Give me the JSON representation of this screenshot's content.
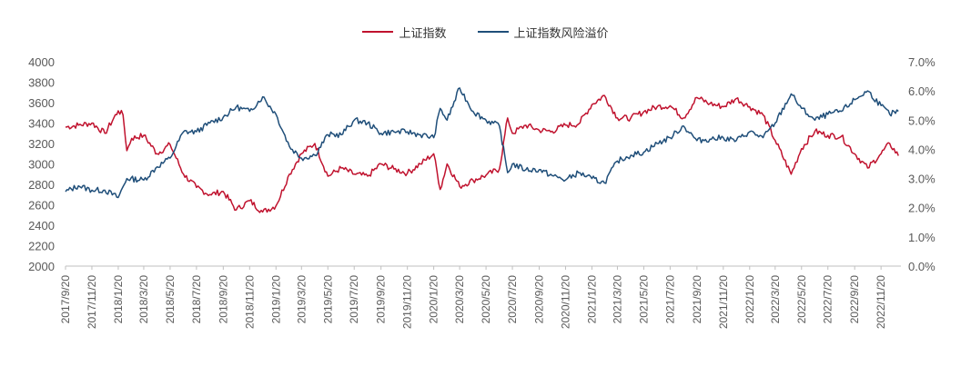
{
  "chart_data": {
    "type": "line",
    "title": "",
    "legend_position": "top-center",
    "grid": false,
    "x_tick_labels": [
      "2017/9/20",
      "2017/11/20",
      "2018/1/20",
      "2018/3/20",
      "2018/5/20",
      "2018/7/20",
      "2018/9/20",
      "2018/11/20",
      "2019/1/20",
      "2019/3/20",
      "2019/5/20",
      "2019/7/20",
      "2019/9/20",
      "2019/11/20",
      "2020/1/20",
      "2020/3/20",
      "2020/5/20",
      "2020/7/20",
      "2020/9/20",
      "2020/11/20",
      "2021/1/20",
      "2021/3/20",
      "2021/5/20",
      "2021/7/20",
      "2021/9/20",
      "2021/11/20",
      "2022/1/20",
      "2022/3/20",
      "2022/5/20",
      "2022/7/20",
      "2022/9/20",
      "2022/11/20"
    ],
    "y_left": {
      "min": 2000,
      "max": 4000,
      "ticks": [
        "2000",
        "2200",
        "2400",
        "2600",
        "2800",
        "3000",
        "3200",
        "3400",
        "3600",
        "3800",
        "4000"
      ]
    },
    "y_right": {
      "min": 0.0,
      "max": 7.0,
      "ticks": [
        "0.0%",
        "1.0%",
        "2.0%",
        "3.0%",
        "4.0%",
        "5.0%",
        "6.0%",
        "7.0%"
      ]
    },
    "series": [
      {
        "name": "上证指数",
        "axis": "left",
        "color": "#C0122E",
        "points": [
          [
            "2017/9/20",
            3360
          ],
          [
            "2017/10/20",
            3380
          ],
          [
            "2017/11/20",
            3400
          ],
          [
            "2017/12/20",
            3300
          ],
          [
            "2018/1/20",
            3520
          ],
          [
            "2018/1/31",
            3480
          ],
          [
            "2018/2/9",
            3130
          ],
          [
            "2018/2/20",
            3250
          ],
          [
            "2018/3/20",
            3280
          ],
          [
            "2018/4/20",
            3100
          ],
          [
            "2018/5/20",
            3190
          ],
          [
            "2018/6/20",
            2900
          ],
          [
            "2018/7/20",
            2770
          ],
          [
            "2018/8/20",
            2700
          ],
          [
            "2018/9/20",
            2730
          ],
          [
            "2018/10/20",
            2550
          ],
          [
            "2018/11/20",
            2640
          ],
          [
            "2018/12/20",
            2530
          ],
          [
            "2019/1/20",
            2590
          ],
          [
            "2019/2/20",
            2900
          ],
          [
            "2019/3/20",
            3100
          ],
          [
            "2019/4/20",
            3200
          ],
          [
            "2019/5/20",
            2880
          ],
          [
            "2019/6/20",
            2960
          ],
          [
            "2019/7/20",
            2900
          ],
          [
            "2019/8/20",
            2880
          ],
          [
            "2019/9/20",
            3000
          ],
          [
            "2019/10/20",
            2950
          ],
          [
            "2019/11/20",
            2910
          ],
          [
            "2019/12/20",
            3000
          ],
          [
            "2020/1/20",
            3100
          ],
          [
            "2020/2/4",
            2750
          ],
          [
            "2020/2/20",
            3000
          ],
          [
            "2020/3/20",
            2780
          ],
          [
            "2020/4/20",
            2840
          ],
          [
            "2020/5/20",
            2890
          ],
          [
            "2020/6/20",
            2950
          ],
          [
            "2020/7/9",
            3450
          ],
          [
            "2020/7/20",
            3300
          ],
          [
            "2020/8/20",
            3380
          ],
          [
            "2020/9/20",
            3330
          ],
          [
            "2020/10/20",
            3320
          ],
          [
            "2020/11/20",
            3380
          ],
          [
            "2020/12/20",
            3390
          ],
          [
            "2021/1/20",
            3580
          ],
          [
            "2021/2/18",
            3670
          ],
          [
            "2021/3/20",
            3450
          ],
          [
            "2021/4/20",
            3450
          ],
          [
            "2021/5/20",
            3510
          ],
          [
            "2021/6/20",
            3560
          ],
          [
            "2021/7/20",
            3570
          ],
          [
            "2021/8/20",
            3450
          ],
          [
            "2021/9/20",
            3650
          ],
          [
            "2021/10/20",
            3590
          ],
          [
            "2021/11/20",
            3560
          ],
          [
            "2021/12/20",
            3640
          ],
          [
            "2022/1/20",
            3560
          ],
          [
            "2022/2/20",
            3480
          ],
          [
            "2022/3/20",
            3230
          ],
          [
            "2022/4/26",
            2900
          ],
          [
            "2022/5/20",
            3150
          ],
          [
            "2022/6/20",
            3320
          ],
          [
            "2022/7/20",
            3280
          ],
          [
            "2022/8/20",
            3270
          ],
          [
            "2022/9/20",
            3100
          ],
          [
            "2022/10/20",
            2960
          ],
          [
            "2022/11/20",
            3100
          ],
          [
            "2022/12/10",
            3200
          ],
          [
            "2022/12/30",
            3080
          ]
        ]
      },
      {
        "name": "上证指数风险溢价",
        "axis": "right",
        "color": "#1F4E79",
        "points": [
          [
            "2017/9/20",
            2.55
          ],
          [
            "2017/10/20",
            2.75
          ],
          [
            "2017/11/20",
            2.6
          ],
          [
            "2017/12/20",
            2.6
          ],
          [
            "2018/1/20",
            2.35
          ],
          [
            "2018/2/9",
            3.0
          ],
          [
            "2018/3/20",
            2.95
          ],
          [
            "2018/4/20",
            3.4
          ],
          [
            "2018/5/20",
            3.7
          ],
          [
            "2018/6/20",
            4.6
          ],
          [
            "2018/7/20",
            4.6
          ],
          [
            "2018/8/20",
            4.9
          ],
          [
            "2018/9/20",
            5.1
          ],
          [
            "2018/10/20",
            5.45
          ],
          [
            "2018/11/20",
            5.3
          ],
          [
            "2018/12/20",
            5.8
          ],
          [
            "2019/1/20",
            5.2
          ],
          [
            "2019/2/20",
            4.1
          ],
          [
            "2019/3/20",
            3.7
          ],
          [
            "2019/4/20",
            3.8
          ],
          [
            "2019/5/20",
            4.5
          ],
          [
            "2019/6/20",
            4.5
          ],
          [
            "2019/7/20",
            5.0
          ],
          [
            "2019/8/20",
            4.9
          ],
          [
            "2019/9/20",
            4.55
          ],
          [
            "2019/10/20",
            4.6
          ],
          [
            "2019/11/20",
            4.6
          ],
          [
            "2019/12/20",
            4.5
          ],
          [
            "2020/1/20",
            4.4
          ],
          [
            "2020/2/4",
            5.4
          ],
          [
            "2020/2/20",
            5.0
          ],
          [
            "2020/3/20",
            6.1
          ],
          [
            "2020/4/20",
            5.3
          ],
          [
            "2020/5/20",
            5.0
          ],
          [
            "2020/6/20",
            4.8
          ],
          [
            "2020/7/9",
            3.2
          ],
          [
            "2020/7/20",
            3.5
          ],
          [
            "2020/8/20",
            3.3
          ],
          [
            "2020/9/20",
            3.3
          ],
          [
            "2020/10/20",
            3.1
          ],
          [
            "2020/11/20",
            2.95
          ],
          [
            "2020/12/20",
            3.2
          ],
          [
            "2021/1/20",
            3.0
          ],
          [
            "2021/2/18",
            2.85
          ],
          [
            "2021/3/20",
            3.6
          ],
          [
            "2021/4/20",
            3.8
          ],
          [
            "2021/5/20",
            3.9
          ],
          [
            "2021/6/20",
            4.2
          ],
          [
            "2021/7/20",
            4.4
          ],
          [
            "2021/8/20",
            4.8
          ],
          [
            "2021/9/20",
            4.3
          ],
          [
            "2021/10/20",
            4.35
          ],
          [
            "2021/11/20",
            4.4
          ],
          [
            "2021/12/20",
            4.3
          ],
          [
            "2022/1/20",
            4.6
          ],
          [
            "2022/2/20",
            4.4
          ],
          [
            "2022/3/20",
            4.9
          ],
          [
            "2022/4/26",
            5.9
          ],
          [
            "2022/5/20",
            5.4
          ],
          [
            "2022/6/20",
            5.0
          ],
          [
            "2022/7/20",
            5.2
          ],
          [
            "2022/8/20",
            5.3
          ],
          [
            "2022/9/20",
            5.7
          ],
          [
            "2022/10/20",
            6.0
          ],
          [
            "2022/11/20",
            5.5
          ],
          [
            "2022/12/10",
            5.2
          ],
          [
            "2022/12/30",
            5.3
          ]
        ]
      }
    ]
  }
}
